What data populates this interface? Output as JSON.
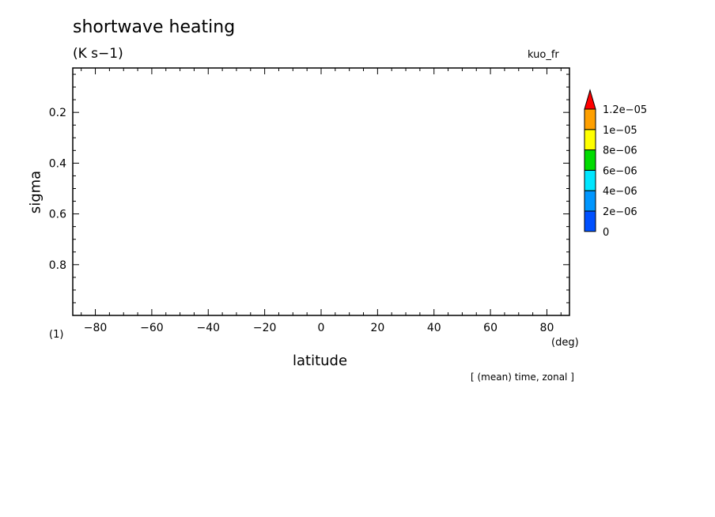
{
  "chart_data": {
    "type": "heatmap",
    "title": "shortwave heating",
    "units": "(K s−1)",
    "run_label": "kuo_fr",
    "panel_label": "(1)",
    "xlabel": "latitude",
    "x_unit": "(deg)",
    "ylabel": "sigma",
    "note": "[ (mean) time, zonal ]",
    "xlim": [
      -88,
      88
    ],
    "ylim": [
      0.025,
      1.0
    ],
    "y_inverted": true,
    "x_ticks": [
      -80,
      -60,
      -40,
      -20,
      0,
      20,
      40,
      60,
      80
    ],
    "x_tick_labels": [
      "−80",
      "−60",
      "−40",
      "−20",
      "0",
      "20",
      "40",
      "60",
      "80"
    ],
    "y_ticks": [
      0.2,
      0.4,
      0.6,
      0.8
    ],
    "y_tick_labels": [
      "0.2",
      "0.4",
      "0.6",
      "0.8"
    ],
    "values": [],
    "colorbar": {
      "levels": [
        0,
        2e-06,
        4e-06,
        6e-06,
        8e-06,
        1e-05,
        1.2e-05
      ],
      "labels": [
        "0",
        "2e−06",
        "4e−06",
        "6e−06",
        "8e−06",
        "1e−05",
        "1.2e−05"
      ],
      "colors": [
        "#0050ff",
        "#0096ff",
        "#00e6ff",
        "#00dc00",
        "#ffff00",
        "#ffa000"
      ],
      "overflow_color": "#ff0000",
      "extend": "max"
    }
  }
}
